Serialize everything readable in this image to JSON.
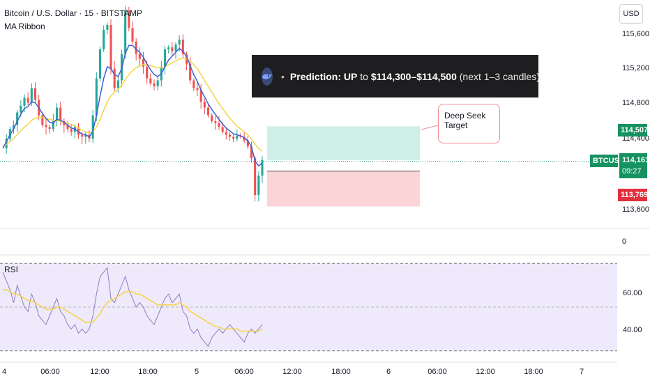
{
  "header": {
    "title": "Bitcoin / U.S. Dollar · 15 · BITSTAMP",
    "indicator": "MA Ribbon"
  },
  "price_axis": {
    "currency": "USD",
    "ticks": [
      "115,600",
      "115,200",
      "114,800",
      "114,400",
      "113,600"
    ],
    "zero_label": "0"
  },
  "price_tags": {
    "target": "114,507",
    "symbol": "BTCUSD",
    "current": "114,161",
    "countdown": "09:27",
    "stop": "113,769"
  },
  "banner": {
    "bullet": "•",
    "prefix": "Prediction: UP",
    "middle": " to ",
    "range": "$114,300–$114,500",
    "suffix": " (next 1–3 candles)."
  },
  "callout": {
    "line1": "Deep Seek",
    "line2": "Target"
  },
  "rsi": {
    "label": "RSI",
    "ticks": [
      "60.00",
      "40.00"
    ]
  },
  "time_axis": {
    "labels": [
      "4",
      "06:00",
      "12:00",
      "18:00",
      "5",
      "06:00",
      "12:00",
      "18:00",
      "6",
      "06:00",
      "12:00",
      "18:00",
      "7"
    ]
  },
  "colors": {
    "up": "#26a69a",
    "down": "#ef5350",
    "ma_fast": "#3d5ed6",
    "ma_slow": "#f5d442",
    "rsi_line": "#8e7cc3",
    "rsi_ma": "#f5d442",
    "rsi_band": "#efeafb",
    "target_zone": "#cfeee8",
    "stop_zone": "#fad4d6",
    "tag_green": "#15925f",
    "tag_red": "#e22f3e"
  },
  "chart_data": {
    "type": "candlestick",
    "price_path": [
      114280,
      114380,
      114480,
      114520,
      114650,
      114720,
      114800,
      114750,
      114900,
      114780,
      114620,
      114520,
      114500,
      114480,
      114560,
      114700,
      114560,
      114520,
      114480,
      114450,
      114500,
      114420,
      114400,
      114420,
      114380,
      114620,
      115000,
      115300,
      115500,
      115550,
      115100,
      114900,
      114980,
      115250,
      115700,
      115520,
      115380,
      115250,
      115200,
      115120,
      115000,
      114950,
      114920,
      114980,
      115120,
      115300,
      115320,
      115280,
      115350,
      115400,
      115250,
      115150,
      114980,
      114900,
      114880,
      114760,
      114700,
      114620,
      114560,
      114540,
      114500,
      114450,
      114420,
      114400,
      114380,
      114410,
      114400,
      114360,
      114300,
      114180,
      113800,
      114000,
      114161
    ],
    "ma_fast": [
      114280,
      114350,
      114420,
      114480,
      114560,
      114630,
      114690,
      114710,
      114760,
      114750,
      114700,
      114640,
      114590,
      114550,
      114540,
      114580,
      114570,
      114550,
      114520,
      114490,
      114480,
      114450,
      114430,
      114420,
      114400,
      114460,
      114620,
      114820,
      115000,
      115120,
      115100,
      115040,
      115020,
      115100,
      115260,
      115340,
      115340,
      115300,
      115270,
      115220,
      115150,
      115090,
      115040,
      115020,
      115050,
      115120,
      115190,
      115230,
      115270,
      115310,
      115280,
      115230,
      115130,
      115040,
      114970,
      114880,
      114810,
      114740,
      114680,
      114630,
      114580,
      114530,
      114490,
      114460,
      114430,
      114420,
      114410,
      114390,
      114360,
      114300,
      114150,
      114100,
      114130
    ],
    "ma_slow": [
      114300,
      114320,
      114350,
      114380,
      114420,
      114460,
      114500,
      114530,
      114570,
      114590,
      114600,
      114600,
      114590,
      114580,
      114570,
      114570,
      114560,
      114550,
      114540,
      114520,
      114510,
      114490,
      114470,
      114450,
      114440,
      114450,
      114500,
      114580,
      114670,
      114760,
      114820,
      114860,
      114890,
      114930,
      114990,
      115040,
      115080,
      115110,
      115130,
      115140,
      115140,
      115130,
      115120,
      115110,
      115110,
      115120,
      115140,
      115160,
      115180,
      115200,
      115210,
      115200,
      115180,
      115140,
      115100,
      115040,
      114980,
      114920,
      114860,
      114800,
      114740,
      114690,
      114640,
      114590,
      114550,
      114510,
      114480,
      114450,
      114420,
      114380,
      114320,
      114280,
      114250
    ],
    "rsi_values": [
      66,
      62,
      58,
      52,
      60,
      55,
      50,
      48,
      56,
      52,
      46,
      44,
      42,
      46,
      50,
      54,
      48,
      46,
      42,
      40,
      42,
      38,
      40,
      38,
      40,
      46,
      56,
      64,
      66,
      68,
      54,
      52,
      56,
      60,
      64,
      58,
      54,
      50,
      52,
      50,
      46,
      44,
      42,
      46,
      50,
      54,
      56,
      52,
      54,
      56,
      48,
      46,
      40,
      38,
      40,
      36,
      34,
      32,
      36,
      38,
      40,
      38,
      40,
      42,
      40,
      38,
      36,
      34,
      38,
      40,
      38,
      40,
      42
    ],
    "rsi_ma": [
      58,
      58,
      57,
      56,
      56,
      55,
      54,
      53,
      53,
      52,
      51,
      50,
      49,
      49,
      49,
      50,
      50,
      49,
      48,
      47,
      46,
      45,
      44,
      43,
      43,
      43,
      45,
      47,
      50,
      52,
      53,
      54,
      55,
      56,
      57,
      57,
      57,
      56,
      56,
      55,
      54,
      53,
      52,
      51,
      51,
      51,
      51,
      51,
      51,
      52,
      51,
      50,
      48,
      47,
      46,
      45,
      44,
      43,
      42,
      41,
      41,
      40,
      40,
      40,
      40,
      40,
      39,
      39,
      39,
      39,
      39,
      39,
      40
    ],
    "price_ylim": [
      113500,
      115750
    ],
    "rsi_ylim": [
      28,
      72
    ],
    "current_price": 114161,
    "target_price": 114507,
    "stop_price": 113769,
    "entry_price": 114161
  }
}
